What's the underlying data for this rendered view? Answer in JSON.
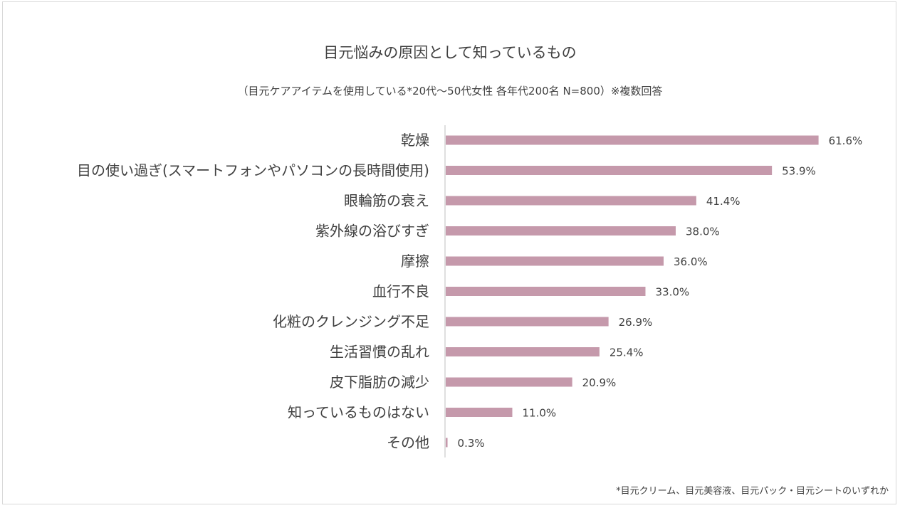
{
  "chart_data": {
    "type": "bar",
    "orientation": "horizontal",
    "title": "目元悩みの原因として知っているもの",
    "subtitle": "（目元ケアアイテムを使用している*20代〜50代女性 各年代200名 N=800）※複数回答",
    "categories": [
      "乾燥",
      "目の使い過ぎ(スマートフォンやパソコンの長時間使用)",
      "眼輪筋の衰え",
      "紫外線の浴びすぎ",
      "摩擦",
      "血行不良",
      "化粧のクレンジング不足",
      "生活習慣の乱れ",
      "皮下脂肪の減少",
      "知っているものはない",
      "その他"
    ],
    "values": [
      61.6,
      53.9,
      41.4,
      38.0,
      36.0,
      33.0,
      26.9,
      25.4,
      20.9,
      11.0,
      0.3
    ],
    "value_labels": [
      "61.6%",
      "53.9%",
      "41.4%",
      "38.0%",
      "36.0%",
      "33.0%",
      "26.9%",
      "25.4%",
      "20.9%",
      "11.0%",
      "0.3%"
    ],
    "bar_color": "#c599ab",
    "axis_color": "#bfbfbf",
    "grid": false,
    "legend": "none"
  },
  "footnote": "*目元クリーム、目元美容液、目元パック・目元シートのいずれか"
}
